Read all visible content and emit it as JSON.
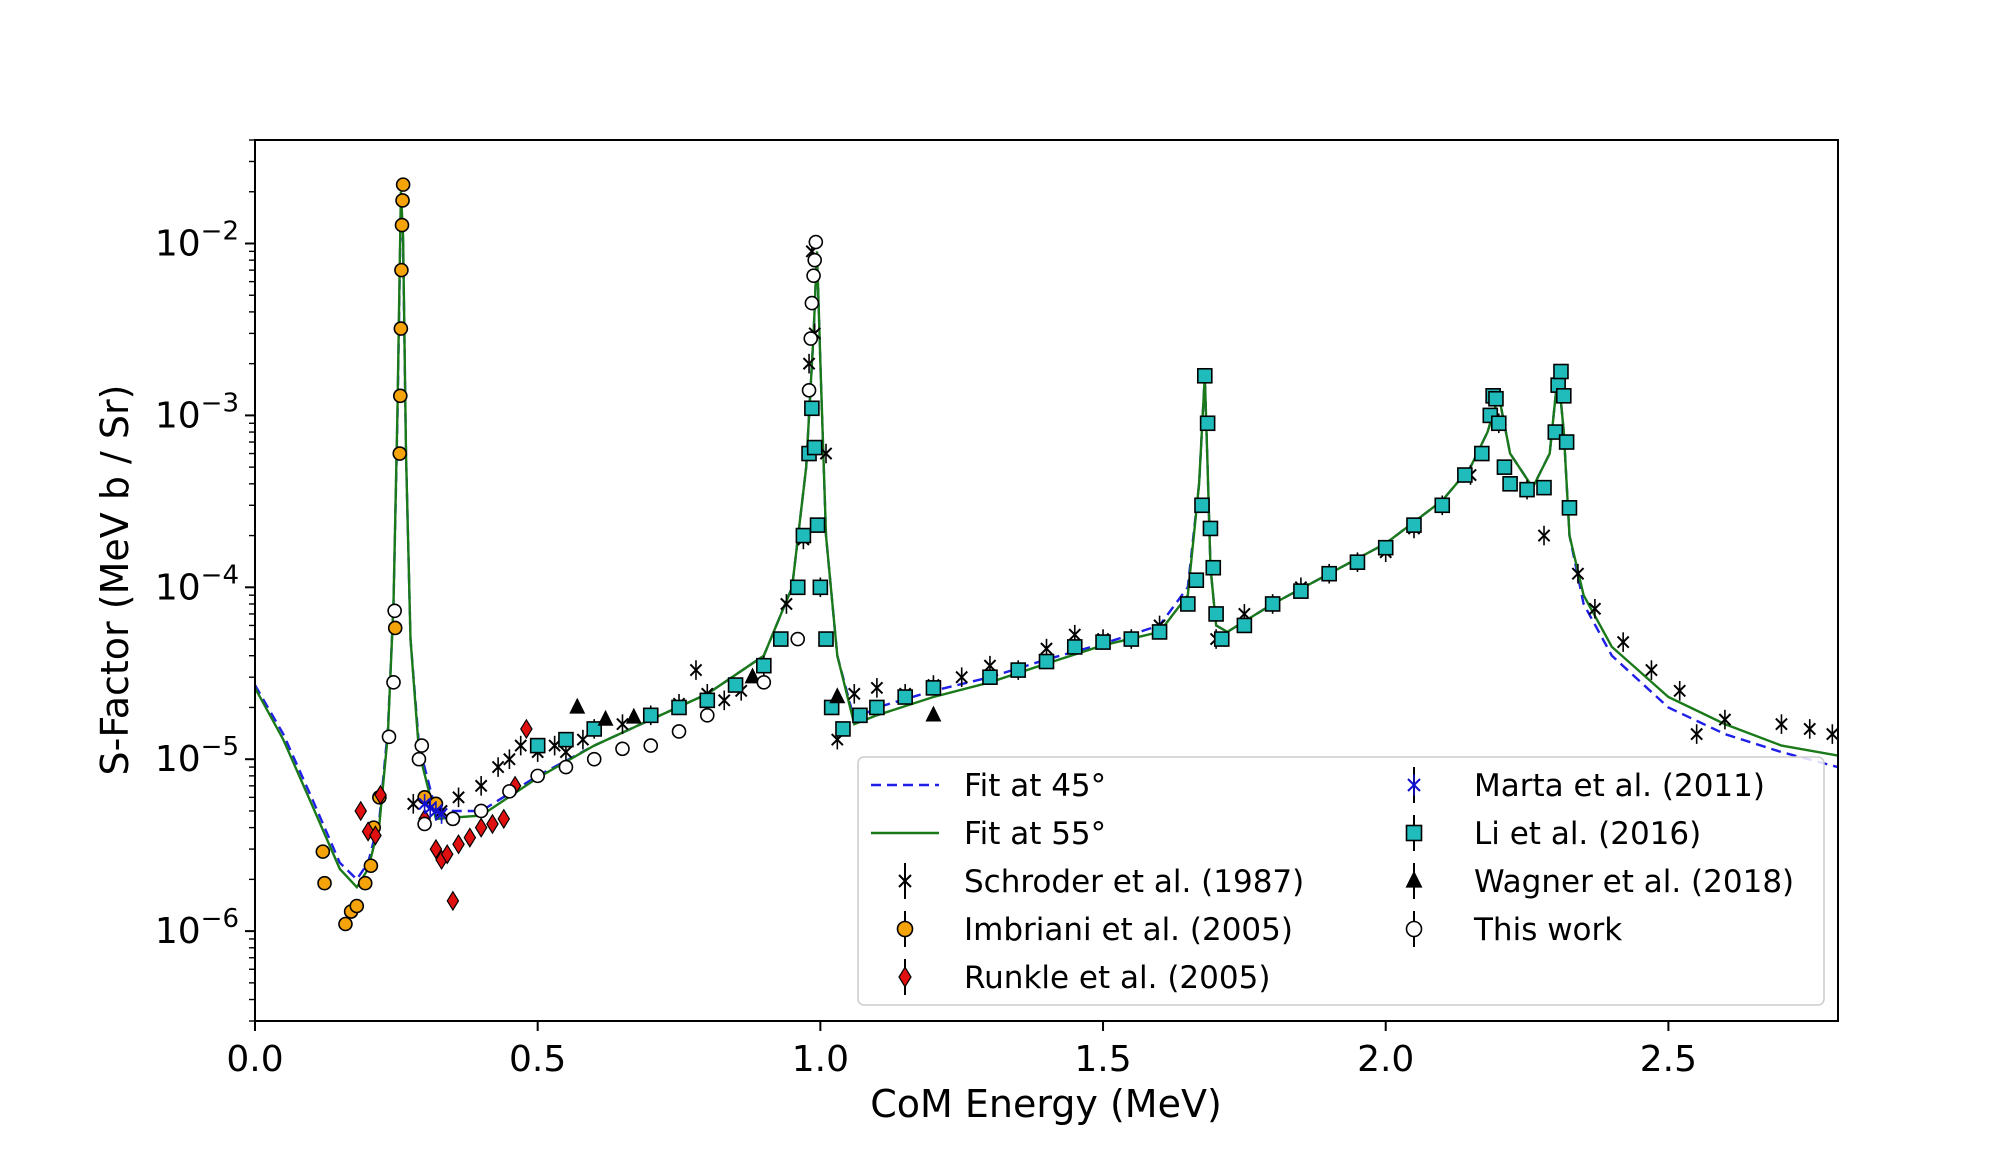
{
  "chart_data": {
    "type": "scatter",
    "title": "",
    "xlabel": "CoM Energy (MeV)",
    "ylabel": "S-Factor (MeV b / Sr)",
    "xlim": [
      0.0,
      2.8
    ],
    "ylim": [
      3e-07,
      0.04
    ],
    "yscale": "log",
    "grid": false,
    "legend_location": "lower-right",
    "x_ticks": [
      {
        "value": 0.0,
        "label": "0.0"
      },
      {
        "value": 0.5,
        "label": "0.5"
      },
      {
        "value": 1.0,
        "label": "1.0"
      },
      {
        "value": 1.5,
        "label": "1.5"
      },
      {
        "value": 2.0,
        "label": "2.0"
      },
      {
        "value": 2.5,
        "label": "2.5"
      }
    ],
    "y_ticks": [
      {
        "value": 1e-06,
        "exp": "−6"
      },
      {
        "value": 1e-05,
        "exp": "−5"
      },
      {
        "value": 0.0001,
        "exp": "−4"
      },
      {
        "value": 0.001,
        "exp": "−3"
      },
      {
        "value": 0.01,
        "exp": "−2"
      }
    ],
    "series": [
      {
        "name": "Fit at 45°",
        "kind": "line",
        "style": "dashed",
        "color": "#1f1fe8",
        "x": [
          0.0,
          0.05,
          0.1,
          0.15,
          0.18,
          0.2,
          0.22,
          0.235,
          0.245,
          0.252,
          0.258,
          0.262,
          0.267,
          0.275,
          0.29,
          0.32,
          0.4,
          0.5,
          0.6,
          0.7,
          0.8,
          0.9,
          0.95,
          0.975,
          0.988,
          0.994,
          1.0,
          1.01,
          1.03,
          1.06,
          1.1,
          1.2,
          1.3,
          1.4,
          1.5,
          1.6,
          1.65,
          1.67,
          1.68,
          1.685,
          1.69,
          1.7,
          1.72,
          1.8,
          1.9,
          2.0,
          2.1,
          2.15,
          2.18,
          2.2,
          2.22,
          2.26,
          2.29,
          2.305,
          2.315,
          2.325,
          2.35,
          2.4,
          2.5,
          2.6,
          2.7,
          2.8
        ],
        "y": [
          2.7e-05,
          1.4e-05,
          6e-06,
          2.5e-06,
          2e-06,
          2.5e-06,
          4.5e-06,
          1.5e-05,
          8e-05,
          0.001,
          0.018,
          0.01,
          0.0006,
          5e-05,
          1.2e-05,
          5e-06,
          5e-06,
          8e-06,
          1.2e-05,
          1.7e-05,
          2.4e-05,
          4e-05,
          0.0001,
          0.0005,
          0.003,
          0.009,
          0.002,
          0.0002,
          4e-05,
          1.7e-05,
          2e-05,
          2.5e-05,
          3e-05,
          3.8e-05,
          4.7e-05,
          6e-05,
          0.0001,
          0.0004,
          0.0017,
          0.0005,
          0.00013,
          6e-05,
          5.5e-05,
          8e-05,
          0.00012,
          0.00018,
          0.00032,
          0.0005,
          0.0008,
          0.0013,
          0.0006,
          0.00038,
          0.0006,
          0.0018,
          0.0008,
          0.0002,
          8e-05,
          4e-05,
          2e-05,
          1.4e-05,
          1.1e-05,
          9e-06
        ]
      },
      {
        "name": "Fit at 55°",
        "kind": "line",
        "style": "solid",
        "color": "#1a7a1a",
        "x": [
          0.0,
          0.05,
          0.1,
          0.15,
          0.18,
          0.2,
          0.22,
          0.235,
          0.245,
          0.252,
          0.258,
          0.262,
          0.267,
          0.275,
          0.29,
          0.32,
          0.4,
          0.5,
          0.6,
          0.7,
          0.8,
          0.9,
          0.95,
          0.975,
          0.988,
          0.994,
          1.0,
          1.01,
          1.03,
          1.06,
          1.1,
          1.2,
          1.3,
          1.4,
          1.5,
          1.6,
          1.65,
          1.67,
          1.68,
          1.685,
          1.69,
          1.7,
          1.72,
          1.8,
          1.9,
          2.0,
          2.1,
          2.15,
          2.18,
          2.2,
          2.22,
          2.26,
          2.29,
          2.305,
          2.315,
          2.325,
          2.35,
          2.4,
          2.5,
          2.6,
          2.7,
          2.8
        ],
        "y": [
          2.6e-05,
          1.3e-05,
          5.5e-06,
          2.3e-06,
          1.8e-06,
          2.3e-06,
          4.2e-06,
          1.4e-05,
          8e-05,
          0.0011,
          0.02,
          0.011,
          0.0006,
          5e-05,
          1.1e-05,
          4.5e-06,
          4.7e-06,
          7.8e-06,
          1.2e-05,
          1.7e-05,
          2.4e-05,
          4e-05,
          0.0001,
          0.0005,
          0.003,
          0.009,
          0.002,
          0.0002,
          4e-05,
          1.6e-05,
          1.8e-05,
          2.3e-05,
          2.8e-05,
          3.6e-05,
          4.6e-05,
          5.5e-05,
          9e-05,
          0.0004,
          0.0017,
          0.0005,
          0.00013,
          6e-05,
          5.5e-05,
          8e-05,
          0.00012,
          0.00018,
          0.00032,
          0.0005,
          0.0008,
          0.0013,
          0.0006,
          0.00038,
          0.0006,
          0.0018,
          0.0008,
          0.0002,
          9e-05,
          4.5e-05,
          2.3e-05,
          1.6e-05,
          1.2e-05,
          1.05e-05
        ]
      },
      {
        "name": "Schroder et al. (1987)",
        "kind": "points",
        "marker": "x",
        "color": "#000000",
        "points": [
          [
            0.28,
            5.5e-06
          ],
          [
            0.33,
            5e-06
          ],
          [
            0.36,
            6e-06
          ],
          [
            0.4,
            7e-06
          ],
          [
            0.43,
            9e-06
          ],
          [
            0.45,
            1e-05
          ],
          [
            0.47,
            1.2e-05
          ],
          [
            0.5,
            1.1e-05
          ],
          [
            0.53,
            1.2e-05
          ],
          [
            0.55,
            1.1e-05
          ],
          [
            0.58,
            1.3e-05
          ],
          [
            0.6,
            1.5e-05
          ],
          [
            0.65,
            1.6e-05
          ],
          [
            0.7,
            1.8e-05
          ],
          [
            0.75,
            2.1e-05
          ],
          [
            0.78,
            3.3e-05
          ],
          [
            0.8,
            2.4e-05
          ],
          [
            0.83,
            2.2e-05
          ],
          [
            0.86,
            2.5e-05
          ],
          [
            0.9,
            3.5e-05
          ],
          [
            0.94,
            8e-05
          ],
          [
            0.97,
            0.00019
          ],
          [
            0.98,
            0.002
          ],
          [
            0.985,
            0.009
          ],
          [
            0.99,
            0.003
          ],
          [
            1.0,
            0.0001
          ],
          [
            1.01,
            0.0006
          ],
          [
            1.03,
            1.3e-05
          ],
          [
            1.06,
            2.4e-05
          ],
          [
            1.1,
            2.6e-05
          ],
          [
            1.15,
            2.4e-05
          ],
          [
            1.2,
            2.7e-05
          ],
          [
            1.25,
            3e-05
          ],
          [
            1.3,
            3.5e-05
          ],
          [
            1.35,
            3.3e-05
          ],
          [
            1.4,
            4.4e-05
          ],
          [
            1.45,
            5.3e-05
          ],
          [
            1.5,
            5e-05
          ],
          [
            1.55,
            5e-05
          ],
          [
            1.6,
            6e-05
          ],
          [
            1.7,
            5e-05
          ],
          [
            1.75,
            7e-05
          ],
          [
            1.8,
            8e-05
          ],
          [
            1.85,
            0.0001
          ],
          [
            1.9,
            0.00012
          ],
          [
            1.95,
            0.00014
          ],
          [
            2.0,
            0.00016
          ],
          [
            2.05,
            0.00022
          ],
          [
            2.1,
            0.0003
          ],
          [
            2.15,
            0.00045
          ],
          [
            2.2,
            0.0009
          ],
          [
            2.25,
            0.00037
          ],
          [
            2.28,
            0.0002
          ],
          [
            2.34,
            0.00012
          ],
          [
            2.37,
            7.5e-05
          ],
          [
            2.42,
            4.8e-05
          ],
          [
            2.47,
            3.3e-05
          ],
          [
            2.52,
            2.5e-05
          ],
          [
            2.55,
            1.4e-05
          ],
          [
            2.6,
            1.7e-05
          ],
          [
            2.7,
            1.6e-05
          ],
          [
            2.75,
            1.5e-05
          ],
          [
            2.79,
            1.4e-05
          ]
        ]
      },
      {
        "name": "Imbriani et al. (2005)",
        "kind": "points",
        "marker": "circle",
        "color": "#f5a30a",
        "points": [
          [
            0.12,
            2.9e-06
          ],
          [
            0.123,
            1.9e-06
          ],
          [
            0.16,
            1.1e-06
          ],
          [
            0.17,
            1.3e-06
          ],
          [
            0.18,
            1.4e-06
          ],
          [
            0.195,
            1.9e-06
          ],
          [
            0.205,
            2.4e-06
          ],
          [
            0.21,
            4e-06
          ],
          [
            0.22,
            6e-06
          ],
          [
            0.248,
            5.8e-05
          ],
          [
            0.256,
            0.0006
          ],
          [
            0.257,
            0.0013
          ],
          [
            0.258,
            0.0032
          ],
          [
            0.259,
            0.007
          ],
          [
            0.26,
            0.0128
          ],
          [
            0.261,
            0.0178
          ],
          [
            0.262,
            0.022
          ],
          [
            0.3,
            6e-06
          ],
          [
            0.32,
            5.5e-06
          ],
          [
            0.35,
            4.5e-06
          ]
        ]
      },
      {
        "name": "Runkle et al. (2005)",
        "kind": "points",
        "marker": "diamond",
        "color": "#e01010",
        "points": [
          [
            0.187,
            5e-06
          ],
          [
            0.2,
            3.8e-06
          ],
          [
            0.213,
            3.6e-06
          ],
          [
            0.222,
            6.2e-06
          ],
          [
            0.3,
            4.5e-06
          ],
          [
            0.32,
            3e-06
          ],
          [
            0.33,
            2.6e-06
          ],
          [
            0.34,
            2.8e-06
          ],
          [
            0.35,
            1.5e-06
          ],
          [
            0.36,
            3.2e-06
          ],
          [
            0.38,
            3.5e-06
          ],
          [
            0.4,
            4e-06
          ],
          [
            0.42,
            4.2e-06
          ],
          [
            0.44,
            4.5e-06
          ],
          [
            0.46,
            7e-06
          ],
          [
            0.48,
            1.5e-05
          ]
        ]
      },
      {
        "name": "Marta et al. (2011)",
        "kind": "points",
        "marker": "x-blue",
        "color": "#1010d0",
        "points": [
          [
            0.3,
            5.5e-06
          ],
          [
            0.31,
            5.2e-06
          ],
          [
            0.32,
            5e-06
          ],
          [
            0.33,
            4.8e-06
          ]
        ]
      },
      {
        "name": "Li et al. (2016)",
        "kind": "points",
        "marker": "square",
        "color": "#20bcbc",
        "points": [
          [
            0.5,
            1.2e-05
          ],
          [
            0.55,
            1.3e-05
          ],
          [
            0.6,
            1.5e-05
          ],
          [
            0.7,
            1.8e-05
          ],
          [
            0.75,
            2e-05
          ],
          [
            0.8,
            2.2e-05
          ],
          [
            0.85,
            2.7e-05
          ],
          [
            0.9,
            3.5e-05
          ],
          [
            0.93,
            5e-05
          ],
          [
            0.96,
            0.0001
          ],
          [
            0.97,
            0.0002
          ],
          [
            0.98,
            0.0006
          ],
          [
            0.985,
            0.0011
          ],
          [
            0.99,
            0.00065
          ],
          [
            0.995,
            0.00023
          ],
          [
            1.0,
            0.0001
          ],
          [
            1.01,
            5e-05
          ],
          [
            1.02,
            2e-05
          ],
          [
            1.04,
            1.5e-05
          ],
          [
            1.07,
            1.8e-05
          ],
          [
            1.1,
            2e-05
          ],
          [
            1.15,
            2.3e-05
          ],
          [
            1.2,
            2.6e-05
          ],
          [
            1.3,
            3e-05
          ],
          [
            1.35,
            3.3e-05
          ],
          [
            1.4,
            3.7e-05
          ],
          [
            1.45,
            4.5e-05
          ],
          [
            1.5,
            4.8e-05
          ],
          [
            1.55,
            5e-05
          ],
          [
            1.6,
            5.5e-05
          ],
          [
            1.65,
            8e-05
          ],
          [
            1.665,
            0.00011
          ],
          [
            1.675,
            0.0003
          ],
          [
            1.68,
            0.0017
          ],
          [
            1.685,
            0.0009
          ],
          [
            1.69,
            0.00022
          ],
          [
            1.695,
            0.00013
          ],
          [
            1.7,
            7e-05
          ],
          [
            1.71,
            5e-05
          ],
          [
            1.75,
            6e-05
          ],
          [
            1.8,
            8e-05
          ],
          [
            1.85,
            9.5e-05
          ],
          [
            1.9,
            0.00012
          ],
          [
            1.95,
            0.00014
          ],
          [
            2.0,
            0.00017
          ],
          [
            2.05,
            0.00023
          ],
          [
            2.1,
            0.0003
          ],
          [
            2.14,
            0.00045
          ],
          [
            2.17,
            0.0006
          ],
          [
            2.185,
            0.001
          ],
          [
            2.19,
            0.0013
          ],
          [
            2.195,
            0.00125
          ],
          [
            2.2,
            0.0009
          ],
          [
            2.21,
            0.0005
          ],
          [
            2.22,
            0.0004
          ],
          [
            2.25,
            0.00037
          ],
          [
            2.28,
            0.00038
          ],
          [
            2.3,
            0.0008
          ],
          [
            2.305,
            0.0015
          ],
          [
            2.31,
            0.0018
          ],
          [
            2.315,
            0.0013
          ],
          [
            2.32,
            0.0007
          ],
          [
            2.325,
            0.00029
          ]
        ]
      },
      {
        "name": "Wagner et al. (2018)",
        "kind": "points",
        "marker": "triangle",
        "color": "#000000",
        "points": [
          [
            0.57,
            2e-05
          ],
          [
            0.62,
            1.7e-05
          ],
          [
            0.67,
            1.75e-05
          ],
          [
            0.88,
            3e-05
          ],
          [
            1.03,
            2.3e-05
          ],
          [
            1.2,
            1.8e-05
          ]
        ]
      },
      {
        "name": "This work",
        "kind": "points",
        "marker": "open-circle",
        "color": "#ffffff",
        "points": [
          [
            0.237,
            1.35e-05
          ],
          [
            0.245,
            2.8e-05
          ],
          [
            0.247,
            7.3e-05
          ],
          [
            0.29,
            1e-05
          ],
          [
            0.295,
            1.2e-05
          ],
          [
            0.3,
            4.2e-06
          ],
          [
            0.35,
            4.5e-06
          ],
          [
            0.4,
            5e-06
          ],
          [
            0.45,
            6.5e-06
          ],
          [
            0.5,
            8e-06
          ],
          [
            0.55,
            9e-06
          ],
          [
            0.6,
            1e-05
          ],
          [
            0.65,
            1.15e-05
          ],
          [
            0.7,
            1.2e-05
          ],
          [
            0.75,
            1.45e-05
          ],
          [
            0.8,
            1.8e-05
          ],
          [
            0.9,
            2.8e-05
          ],
          [
            0.96,
            5e-05
          ],
          [
            0.98,
            0.0014
          ],
          [
            0.983,
            0.0028
          ],
          [
            0.985,
            0.0045
          ],
          [
            0.988,
            0.0065
          ],
          [
            0.99,
            0.008
          ],
          [
            0.992,
            0.0102
          ]
        ]
      }
    ]
  }
}
